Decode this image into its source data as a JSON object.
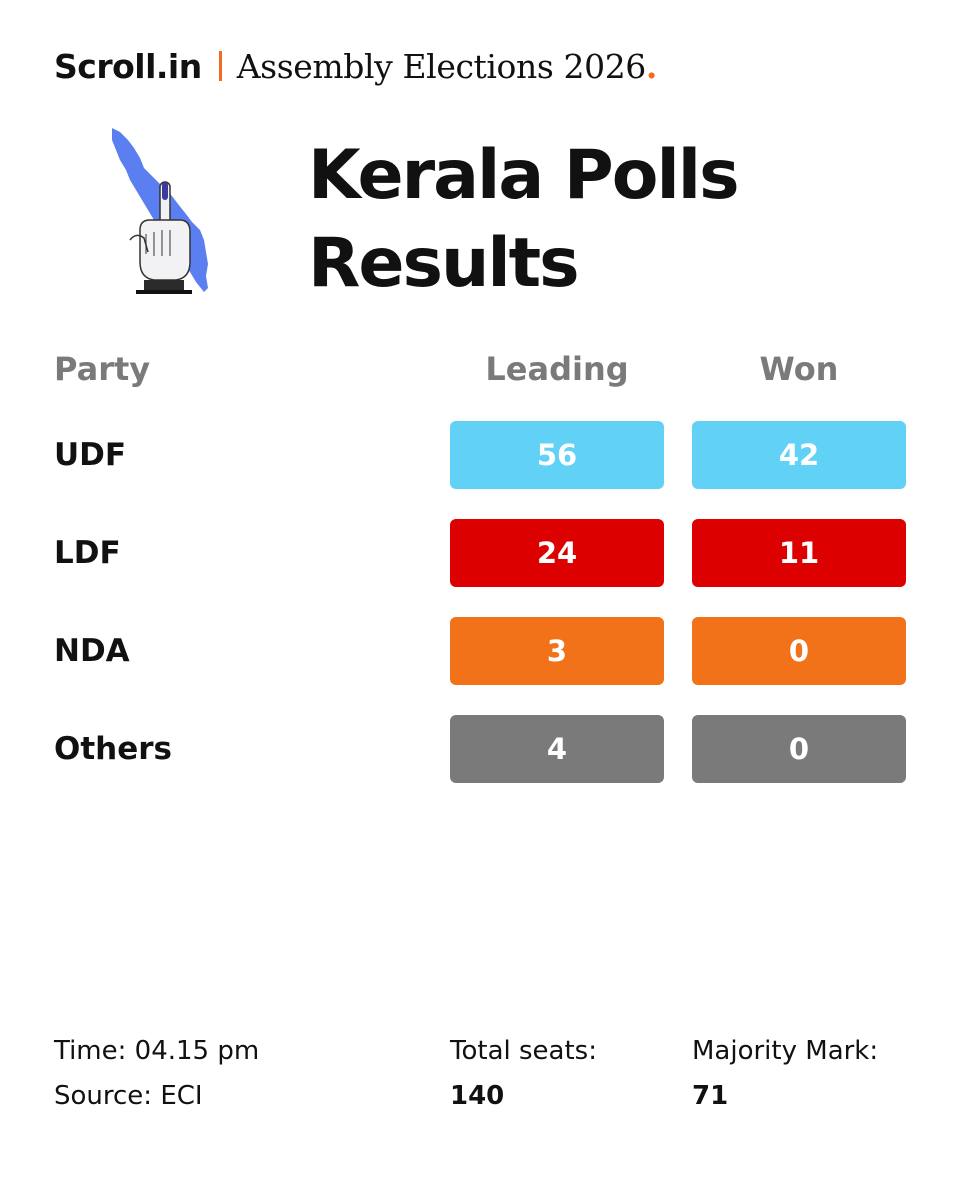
{
  "header": {
    "brand": "Scroll.in",
    "edition": "Assembly Elections 2026",
    "dot": "."
  },
  "title": {
    "line1": "Kerala Polls",
    "line2": "Results"
  },
  "columns": {
    "party": "Party",
    "leading": "Leading",
    "won": "Won"
  },
  "rows": [
    {
      "party": "UDF",
      "leading": "56",
      "won": "42",
      "color": "#62d1f6"
    },
    {
      "party": "LDF",
      "leading": "24",
      "won": "11",
      "color": "#dc0000"
    },
    {
      "party": "NDA",
      "leading": "3",
      "won": "0",
      "color": "#f27219"
    },
    {
      "party": "Others",
      "leading": "4",
      "won": "0",
      "color": "#7a7a7a"
    }
  ],
  "footer": {
    "time": "Time: 04.15 pm",
    "source": "Source: ECI",
    "total_label": "Total seats:",
    "total_value": "140",
    "majority_label": "Majority Mark:",
    "majority_value": "71"
  },
  "icons": {
    "map": "kerala-map-icon",
    "hand": "inked-finger-icon"
  },
  "colors": {
    "accent": "#f26b21",
    "map_blue": "#5b7ff0"
  }
}
